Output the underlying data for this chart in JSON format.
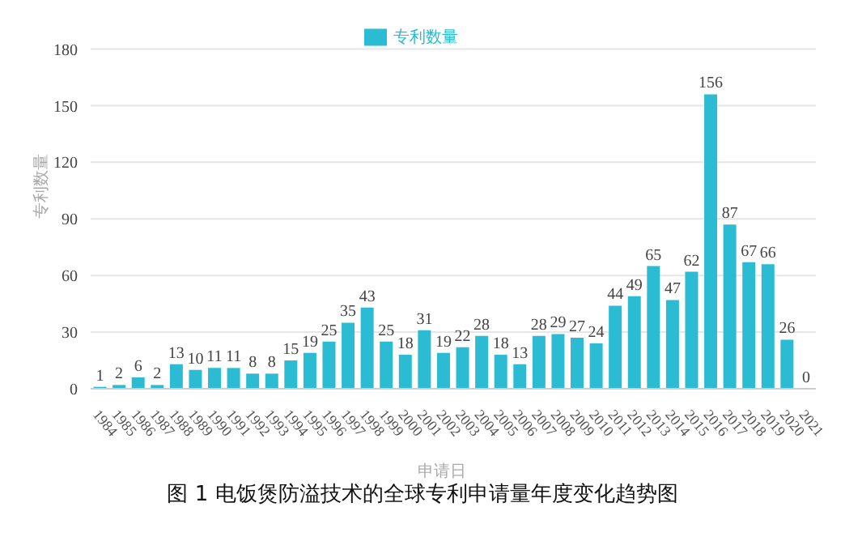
{
  "chart_data": {
    "type": "bar",
    "categories": [
      "1984",
      "1985",
      "1986",
      "1987",
      "1988",
      "1989",
      "1990",
      "1991",
      "1992",
      "1993",
      "1994",
      "1995",
      "1996",
      "1997",
      "1998",
      "1999",
      "2000",
      "2001",
      "2002",
      "2003",
      "2004",
      "2005",
      "2006",
      "2007",
      "2008",
      "2009",
      "2010",
      "2011",
      "2012",
      "2013",
      "2014",
      "2015",
      "2016",
      "2017",
      "2018",
      "2019",
      "2020",
      "2021"
    ],
    "series": [
      {
        "name": "专利数量",
        "color": "#2bbcd4",
        "values": [
          1,
          2,
          6,
          2,
          13,
          10,
          11,
          11,
          8,
          8,
          15,
          19,
          25,
          35,
          43,
          25,
          18,
          31,
          19,
          22,
          28,
          18,
          13,
          28,
          29,
          27,
          24,
          44,
          49,
          65,
          47,
          62,
          156,
          87,
          67,
          66,
          26,
          0
        ]
      }
    ],
    "xlabel": "申请日",
    "ylabel": "专利数量",
    "ylim": [
      0,
      180
    ],
    "yticks": [
      0,
      30,
      60,
      90,
      120,
      150,
      180
    ],
    "grid": "y",
    "legend": "top",
    "data_labels": true,
    "annotations": [
      "图 1 电饭煲防溢技术的全球专利申请量年度变化趋势图"
    ]
  }
}
